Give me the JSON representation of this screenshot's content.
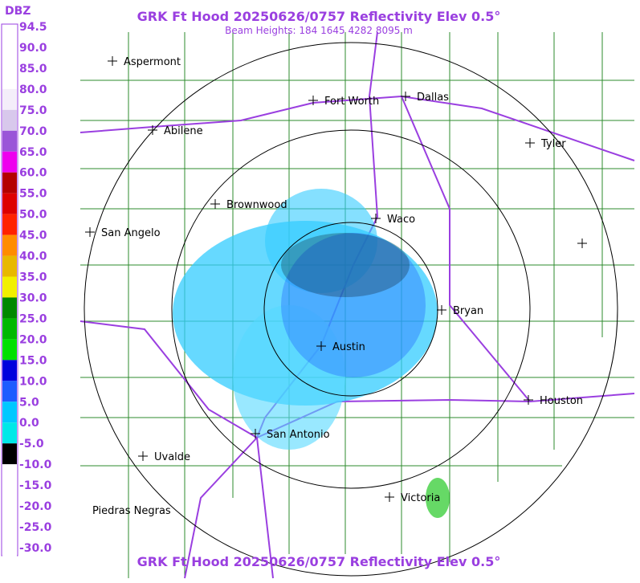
{
  "header": {
    "title": "GRK Ft Hood 20250626/0757 Reflectivity Elev 0.5°",
    "subtitle": "Beam Heights: 184 1645 4282 8095 m"
  },
  "legend": {
    "title": "DBZ",
    "entries": [
      {
        "label": "94.5",
        "color": "#ffffff"
      },
      {
        "label": "90.0",
        "color": "#ffffff"
      },
      {
        "label": "85.0",
        "color": "#ffffff"
      },
      {
        "label": "80.0",
        "color": "#f4eefa"
      },
      {
        "label": "75.0",
        "color": "#d8c8ec"
      },
      {
        "label": "70.0",
        "color": "#9a55d8"
      },
      {
        "label": "65.0",
        "color": "#ee00ee"
      },
      {
        "label": "60.0",
        "color": "#b40000"
      },
      {
        "label": "55.0",
        "color": "#dd0000"
      },
      {
        "label": "50.0",
        "color": "#ff2200"
      },
      {
        "label": "45.0",
        "color": "#ff8c00"
      },
      {
        "label": "40.0",
        "color": "#e8b800"
      },
      {
        "label": "35.0",
        "color": "#f2f000"
      },
      {
        "label": "30.0",
        "color": "#008800"
      },
      {
        "label": "25.0",
        "color": "#00b800"
      },
      {
        "label": "20.0",
        "color": "#00e000"
      },
      {
        "label": "15.0",
        "color": "#0000dd"
      },
      {
        "label": "10.0",
        "color": "#1e5cff"
      },
      {
        "label": "5.0",
        "color": "#00c8ff"
      },
      {
        "label": "0.0",
        "color": "#00e8e8"
      },
      {
        "label": "-5.0",
        "color": "#000000"
      },
      {
        "label": "-10.0",
        "color": "#ffffff"
      },
      {
        "label": "-15.0",
        "color": "#ffffff"
      },
      {
        "label": "-20.0",
        "color": "#ffffff"
      },
      {
        "label": "-25.0",
        "color": "#ffffff"
      },
      {
        "label": "-30.0",
        "color": "#ffffff"
      }
    ]
  },
  "cities": [
    {
      "name": "Aspermont"
    },
    {
      "name": "Abilene"
    },
    {
      "name": "Fort Worth"
    },
    {
      "name": "Dallas"
    },
    {
      "name": "Tyler"
    },
    {
      "name": "Brownwood"
    },
    {
      "name": "Waco"
    },
    {
      "name": "San Angelo"
    },
    {
      "name": "Bryan"
    },
    {
      "name": "Austin"
    },
    {
      "name": "Houston"
    },
    {
      "name": "San Antonio"
    },
    {
      "name": "Uvalde"
    },
    {
      "name": "Victoria"
    },
    {
      "name": "Piedras Negras"
    }
  ],
  "footer": {
    "title": "GRK Ft Hood 20250626/0757 Reflectivity Elev 0.5°"
  }
}
